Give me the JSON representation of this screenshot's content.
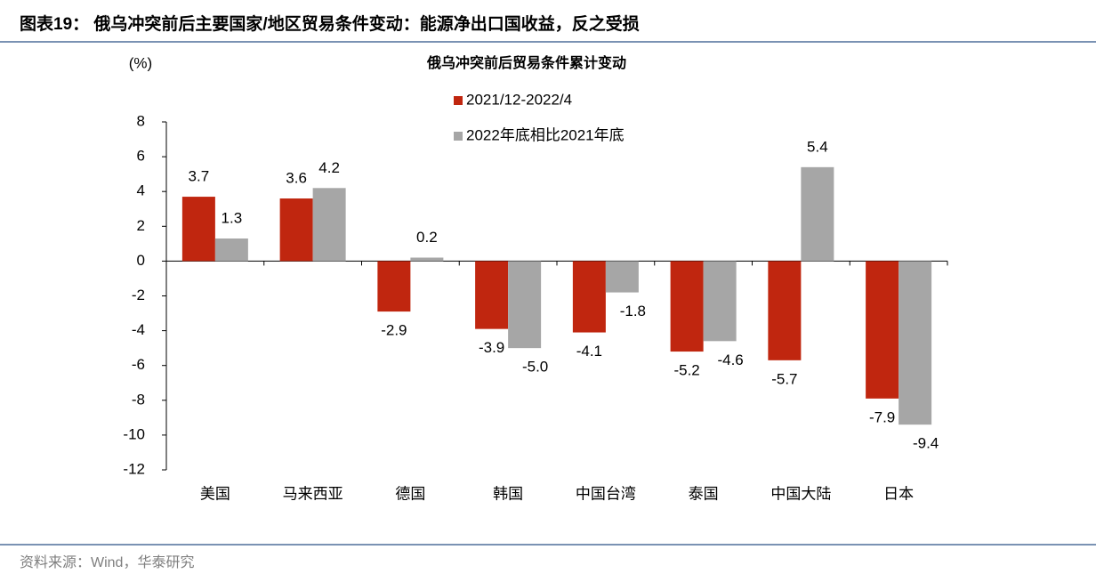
{
  "header": {
    "title": "图表19： 俄乌冲突前后主要国家/地区贸易条件变动：能源净出口国收益，反之受损"
  },
  "chart_data": {
    "type": "bar",
    "title": "俄乌冲突前后贸易条件累计变动",
    "y_label": "(%)",
    "categories": [
      "美国",
      "马来西亚",
      "德国",
      "韩国",
      "中国台湾",
      "泰国",
      "中国大陆",
      "日本"
    ],
    "series": [
      {
        "name": "2021/12-2022/4",
        "color": "#c0260f",
        "values": [
          3.7,
          3.6,
          -2.9,
          -3.9,
          -4.1,
          -5.2,
          -5.7,
          -7.9
        ]
      },
      {
        "name": "2022年底相比2021年底",
        "color": "#a6a6a6",
        "values": [
          1.3,
          4.2,
          0.2,
          -5.0,
          -1.8,
          -4.6,
          5.4,
          -9.4
        ],
        "value_labels": [
          "1.3",
          "4.2",
          "0.2",
          "-5.0",
          "-1.8",
          "-4.6",
          "5.4",
          "-9.4"
        ]
      }
    ],
    "ylim": [
      -12,
      8
    ],
    "yticks": [
      -12,
      -10,
      -8,
      -6,
      -4,
      -2,
      0,
      2,
      4,
      6,
      8
    ],
    "legend": "top-center"
  },
  "source": "资料来源：Wind，华泰研究"
}
